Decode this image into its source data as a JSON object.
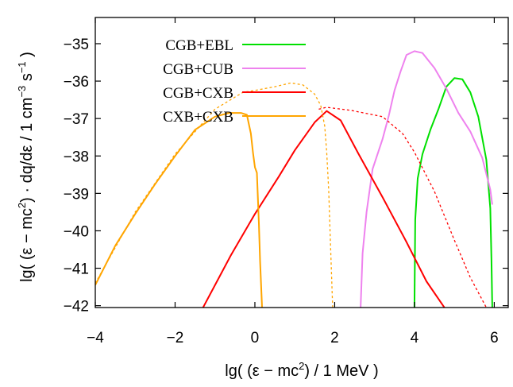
{
  "chart_data": {
    "type": "line",
    "xlabel": "lg( (ε − mc²) / 1 MeV )",
    "ylabel": "lg( (ε − mc²) · dq/dε / 1 cm⁻³ s⁻¹ )",
    "xlim": [
      -4,
      6.35
    ],
    "ylim": [
      -42.05,
      -34.3
    ],
    "x_ticks": [
      -4,
      -2,
      0,
      2,
      4,
      6
    ],
    "x_tick_labels": [
      "−4",
      "−2",
      "0",
      "2",
      "4",
      "6"
    ],
    "y_ticks": [
      -35,
      -36,
      -37,
      -38,
      -39,
      -40,
      -41,
      -42
    ],
    "y_tick_labels": [
      "−35",
      "−36",
      "−37",
      "−38",
      "−39",
      "−40",
      "−41",
      "−42"
    ],
    "grid": false,
    "legend_position": "top-left",
    "series": [
      {
        "name": "CGB+EBL",
        "color": "#00e000",
        "dash": "solid",
        "x": [
          4.0,
          4.02,
          4.08,
          4.2,
          4.4,
          4.6,
          4.8,
          5.0,
          5.2,
          5.4,
          5.6,
          5.8,
          5.9,
          5.93,
          5.95
        ],
        "y": [
          -42.05,
          -39.7,
          -38.6,
          -37.95,
          -37.3,
          -36.75,
          -36.15,
          -35.92,
          -35.95,
          -36.3,
          -36.95,
          -38.1,
          -39.4,
          -40.8,
          -42.05
        ]
      },
      {
        "name": "CGB+CUB",
        "color": "#ee82ee",
        "dash": "solid",
        "x": [
          2.65,
          2.7,
          2.8,
          2.95,
          3.2,
          3.35,
          3.5,
          3.65,
          3.8,
          4.0,
          4.2,
          4.5,
          4.8,
          5.1,
          5.4,
          5.7,
          5.9,
          5.95
        ],
        "y": [
          -42.05,
          -40.6,
          -39.5,
          -38.35,
          -37.55,
          -36.95,
          -36.25,
          -35.75,
          -35.3,
          -35.2,
          -35.25,
          -35.65,
          -36.2,
          -36.85,
          -37.35,
          -38.05,
          -38.9,
          -39.3
        ]
      },
      {
        "name": "CGB+CXB",
        "color": "#ff0000",
        "dash": "solid",
        "x": [
          -1.3,
          -0.6,
          0.0,
          0.6,
          1.0,
          1.5,
          1.8,
          2.15,
          2.6,
          3.2,
          3.8,
          4.3,
          4.75
        ],
        "y": [
          -42.05,
          -40.65,
          -39.55,
          -38.55,
          -37.85,
          -37.1,
          -36.8,
          -37.05,
          -37.95,
          -39.1,
          -40.3,
          -41.35,
          -42.05
        ]
      },
      {
        "name": "",
        "color": "#ff0000",
        "dash": "dashed",
        "x": [
          1.6,
          1.8,
          2.4,
          3.2,
          3.7,
          4.0,
          4.5,
          5.0,
          5.4,
          5.8
        ],
        "y": [
          -36.75,
          -36.7,
          -36.78,
          -36.95,
          -37.4,
          -37.9,
          -38.95,
          -40.25,
          -41.25,
          -42.05
        ]
      },
      {
        "name": "CXB+CXB",
        "color": "#ffa500",
        "dash": "solid",
        "x": [
          -4.0,
          -3.5,
          -3.0,
          -2.5,
          -2.0,
          -1.5,
          -1.0,
          -0.65,
          -0.35,
          -0.2,
          -0.1,
          -0.05,
          0.0,
          0.05,
          0.1,
          0.13,
          0.18
        ],
        "y": [
          -41.45,
          -40.4,
          -39.55,
          -38.75,
          -38.0,
          -37.3,
          -36.95,
          -36.85,
          -36.85,
          -36.9,
          -37.4,
          -37.9,
          -38.3,
          -38.45,
          -39.8,
          -40.8,
          -42.05
        ]
      },
      {
        "name": "",
        "color": "#ffa500",
        "dash": "dashed",
        "x": [
          -4.0,
          -3.0,
          -2.0,
          -1.0,
          -0.3,
          0.0,
          0.5,
          0.9,
          1.2,
          1.5,
          1.65,
          1.75,
          1.8,
          1.85,
          1.9,
          1.95
        ],
        "y": [
          -41.4,
          -39.5,
          -37.95,
          -36.75,
          -36.3,
          -36.25,
          -36.15,
          -36.05,
          -36.1,
          -36.35,
          -36.65,
          -37.2,
          -37.9,
          -38.9,
          -40.5,
          -42.05
        ]
      }
    ]
  }
}
